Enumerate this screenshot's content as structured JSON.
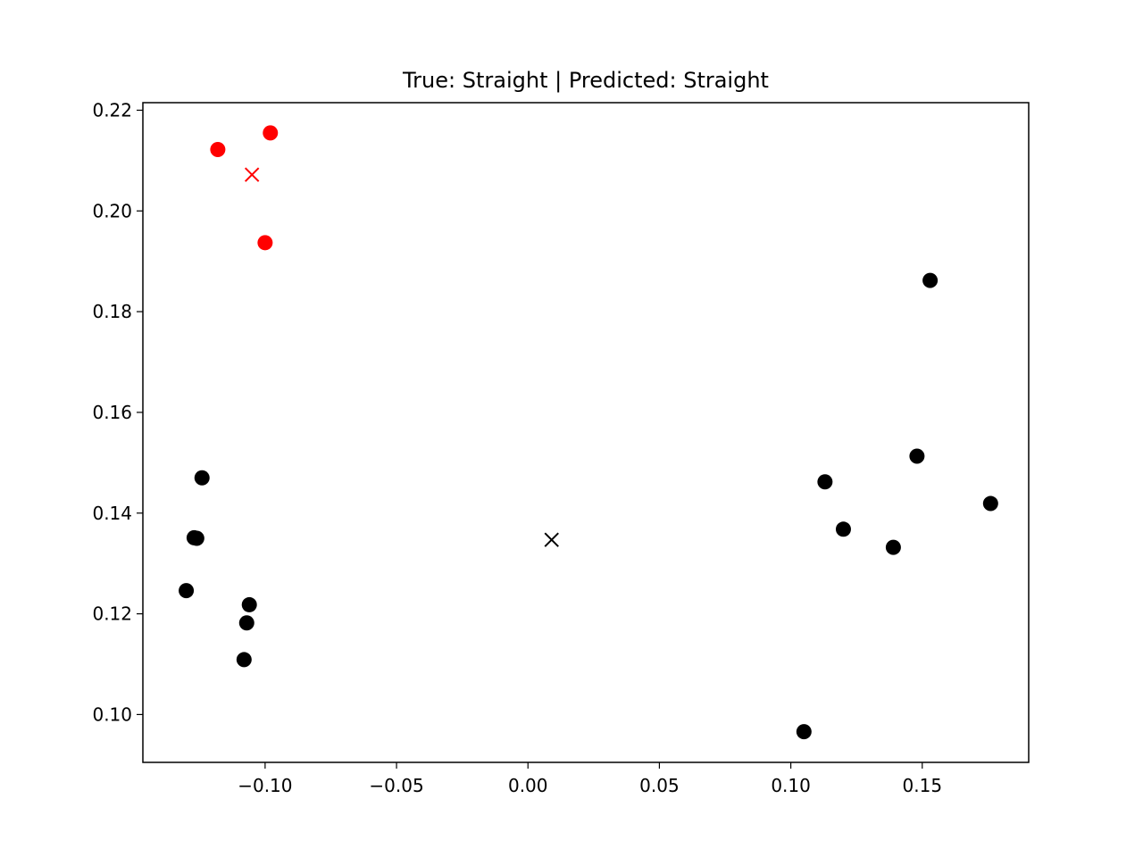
{
  "chart_data": {
    "type": "scatter",
    "title": "True: Straight | Predicted: Straight",
    "xlabel": "",
    "ylabel": "",
    "xlim": [
      -0.1465,
      0.1905
    ],
    "ylim": [
      0.0905,
      0.2215
    ],
    "xticks": [
      -0.1,
      -0.05,
      0.0,
      0.05,
      0.1,
      0.15
    ],
    "xtick_labels": [
      "−0.10",
      "−0.05",
      "0.00",
      "0.05",
      "0.10",
      "0.15"
    ],
    "yticks": [
      0.1,
      0.12,
      0.14,
      0.16,
      0.18,
      0.2,
      0.22
    ],
    "ytick_labels": [
      "0.10",
      "0.12",
      "0.14",
      "0.16",
      "0.18",
      "0.20",
      "0.22"
    ],
    "grid": false,
    "legend": "none",
    "series": [
      {
        "color": "#ff0000",
        "marker": "circle",
        "points": [
          {
            "x": -0.118,
            "y": 0.2122
          },
          {
            "x": -0.098,
            "y": 0.2155
          },
          {
            "x": -0.1,
            "y": 0.1937
          }
        ]
      },
      {
        "color": "#ff0000",
        "marker": "x",
        "points": [
          {
            "x": -0.105,
            "y": 0.2072
          }
        ]
      },
      {
        "color": "#000000",
        "marker": "circle",
        "points": [
          {
            "x": -0.124,
            "y": 0.147
          },
          {
            "x": -0.127,
            "y": 0.1351
          },
          {
            "x": -0.126,
            "y": 0.135
          },
          {
            "x": -0.13,
            "y": 0.1246
          },
          {
            "x": -0.106,
            "y": 0.1218
          },
          {
            "x": -0.107,
            "y": 0.1182
          },
          {
            "x": -0.108,
            "y": 0.1109
          },
          {
            "x": 0.153,
            "y": 0.1862
          },
          {
            "x": 0.148,
            "y": 0.1513
          },
          {
            "x": 0.113,
            "y": 0.1462
          },
          {
            "x": 0.176,
            "y": 0.1419
          },
          {
            "x": 0.12,
            "y": 0.1368
          },
          {
            "x": 0.139,
            "y": 0.1332
          },
          {
            "x": 0.105,
            "y": 0.0966
          }
        ]
      },
      {
        "color": "#000000",
        "marker": "x",
        "points": [
          {
            "x": 0.009,
            "y": 0.1347
          }
        ]
      }
    ]
  }
}
